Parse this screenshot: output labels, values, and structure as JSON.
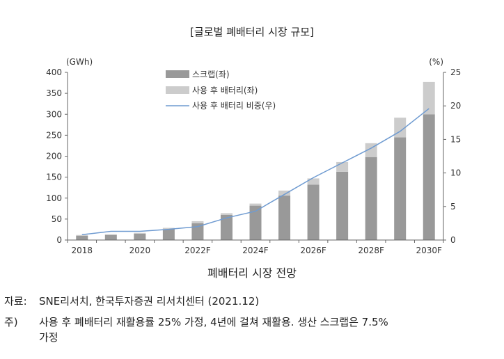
{
  "chart_data": {
    "type": "bar",
    "title": "[글로벌 폐배터리 시장 규모]",
    "caption": "폐배터리 시장 전망",
    "categories": [
      "2018",
      "2019",
      "2020",
      "2021",
      "2022F",
      "2023F",
      "2024F",
      "2025F",
      "2026F",
      "2027F",
      "2028F",
      "2029F",
      "2030F"
    ],
    "x_tick_labels": [
      "2018",
      "2020",
      "2022F",
      "2024F",
      "2026F",
      "2028F",
      "2030F"
    ],
    "y_left": {
      "label": "(GWh)",
      "ylim": [
        0,
        400
      ],
      "ticks": [
        "0",
        "50",
        "100",
        "150",
        "200",
        "250",
        "300",
        "350",
        "400"
      ]
    },
    "y_right": {
      "label": "(%)",
      "ylim": [
        0,
        25
      ],
      "ticks": [
        "0",
        "5",
        "10",
        "15",
        "20",
        "25"
      ]
    },
    "series": [
      {
        "name": "스크랩(좌)",
        "kind": "bar-stacked",
        "axis": "left",
        "color": "#999999",
        "values": [
          10,
          12,
          15,
          26,
          40,
          60,
          82,
          106,
          132,
          163,
          198,
          245,
          300
        ]
      },
      {
        "name": "사용 후 배터리(좌)",
        "kind": "bar-stacked",
        "axis": "left",
        "color": "#cccccc",
        "values": [
          2,
          2,
          2,
          3,
          5,
          4,
          5,
          12,
          15,
          23,
          33,
          47,
          77
        ]
      },
      {
        "name": "사용 후 배터리 비중(우)",
        "kind": "line",
        "axis": "right",
        "color": "#6f9bd1",
        "values": [
          0.8,
          1.3,
          1.3,
          1.6,
          2.0,
          3.3,
          4.3,
          6.8,
          9.3,
          11.5,
          13.7,
          16.2,
          19.6
        ]
      }
    ]
  },
  "notes": {
    "source_label": "자료:",
    "source_text": "SNE리서치, 한국투자증권 리서치센터 (2021.12)",
    "footnote_label": "주)",
    "footnote_text": "사용 후 폐배터리 재활용률 25% 가정, 4년에 걸쳐 재활용. 생산 스크랩은 7.5%",
    "footnote_text_cont": "가정"
  }
}
